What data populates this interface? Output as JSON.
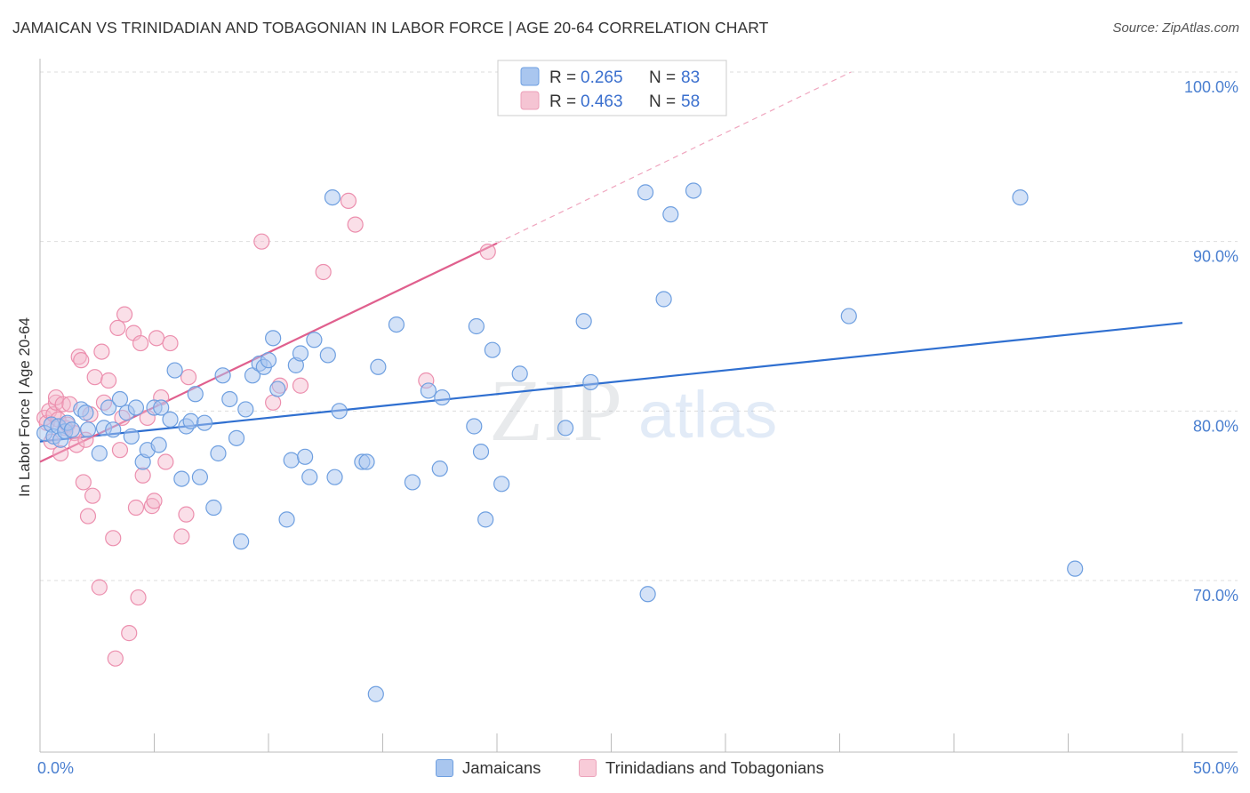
{
  "header": {
    "title": "JAMAICAN VS TRINIDADIAN AND TOBAGONIAN IN LABOR FORCE | AGE 20-64 CORRELATION CHART",
    "source": "Source: ZipAtlas.com"
  },
  "watermark": {
    "zip": "ZIP",
    "atlas": "atlas"
  },
  "legend": {
    "rows": [
      {
        "r_label": "R = ",
        "r_value": "0.265",
        "n_label": "N = ",
        "n_value": "83"
      },
      {
        "r_label": "R = ",
        "r_value": "0.463",
        "n_label": "N = ",
        "n_value": "58"
      }
    ]
  },
  "bottom_legend": {
    "items": [
      {
        "label": "Jamaicans"
      },
      {
        "label": "Trinidadians and Tobagonians"
      }
    ]
  },
  "colors": {
    "blue_fill": "#a9c6ef",
    "blue_stroke": "#6e9fe0",
    "blue_line": "#2f6fd0",
    "pink_fill": "#f5b8cb",
    "pink_stroke": "#ec8fae",
    "pink_line": "#e0608e",
    "axis_text": "#4a7fd0",
    "grid": "#dddddd"
  },
  "chart_data": {
    "type": "scatter",
    "title": "JAMAICAN VS TRINIDADIAN AND TOBAGONIAN IN LABOR FORCE | AGE 20-64 CORRELATION CHART",
    "xlabel": "",
    "ylabel": "In Labor Force | Age 20-64",
    "xlim": [
      0,
      50
    ],
    "ylim": [
      60,
      101.5
    ],
    "x_tick_labels": [
      "0.0%",
      "50.0%"
    ],
    "y_ticks": [
      70,
      80,
      90,
      100
    ],
    "y_tick_labels": [
      "70.0%",
      "80.0%",
      "90.0%",
      "100.0%"
    ],
    "grid": true,
    "legend_position": "top-center",
    "series": [
      {
        "name": "Jamaicans",
        "R": 0.265,
        "N": 83,
        "trend": {
          "x": [
            0,
            50
          ],
          "y": [
            78.2,
            85.2
          ],
          "dashed_extension": false
        },
        "points": [
          [
            0.2,
            78.7
          ],
          [
            0.5,
            79.2
          ],
          [
            0.6,
            78.5
          ],
          [
            0.8,
            79.1
          ],
          [
            0.9,
            78.3
          ],
          [
            1.1,
            78.8
          ],
          [
            1.2,
            79.3
          ],
          [
            1.4,
            78.9
          ],
          [
            1.8,
            80.1
          ],
          [
            2.0,
            79.9
          ],
          [
            2.1,
            78.9
          ],
          [
            2.6,
            77.5
          ],
          [
            2.8,
            79.0
          ],
          [
            3.0,
            80.2
          ],
          [
            3.2,
            78.9
          ],
          [
            3.5,
            80.7
          ],
          [
            3.8,
            79.9
          ],
          [
            4.0,
            78.5
          ],
          [
            4.2,
            80.2
          ],
          [
            4.5,
            77.0
          ],
          [
            4.7,
            77.7
          ],
          [
            5.0,
            80.2
          ],
          [
            5.2,
            78.0
          ],
          [
            5.3,
            80.2
          ],
          [
            5.7,
            79.5
          ],
          [
            5.9,
            82.4
          ],
          [
            6.2,
            76.0
          ],
          [
            6.4,
            79.1
          ],
          [
            6.6,
            79.4
          ],
          [
            6.8,
            81.0
          ],
          [
            7.0,
            76.1
          ],
          [
            7.2,
            79.3
          ],
          [
            7.6,
            74.3
          ],
          [
            7.8,
            77.5
          ],
          [
            8.0,
            82.1
          ],
          [
            8.3,
            80.7
          ],
          [
            8.6,
            78.4
          ],
          [
            8.8,
            72.3
          ],
          [
            9.0,
            80.1
          ],
          [
            9.3,
            82.1
          ],
          [
            9.6,
            82.8
          ],
          [
            9.8,
            82.6
          ],
          [
            10.0,
            83.0
          ],
          [
            10.2,
            84.3
          ],
          [
            10.4,
            81.3
          ],
          [
            10.8,
            73.6
          ],
          [
            11.0,
            77.1
          ],
          [
            11.2,
            82.7
          ],
          [
            11.4,
            83.4
          ],
          [
            11.6,
            77.3
          ],
          [
            11.8,
            76.1
          ],
          [
            12.0,
            84.2
          ],
          [
            12.6,
            83.3
          ],
          [
            12.8,
            92.6
          ],
          [
            12.9,
            76.1
          ],
          [
            13.1,
            80.0
          ],
          [
            14.1,
            77.0
          ],
          [
            14.3,
            77.0
          ],
          [
            14.7,
            63.3
          ],
          [
            14.8,
            82.6
          ],
          [
            15.6,
            85.1
          ],
          [
            16.3,
            75.8
          ],
          [
            17.0,
            81.2
          ],
          [
            17.5,
            76.6
          ],
          [
            17.6,
            80.8
          ],
          [
            19.0,
            79.1
          ],
          [
            19.1,
            85.0
          ],
          [
            19.3,
            77.6
          ],
          [
            19.5,
            73.6
          ],
          [
            19.8,
            83.6
          ],
          [
            20.2,
            75.7
          ],
          [
            21.0,
            82.2
          ],
          [
            23.0,
            79.0
          ],
          [
            23.8,
            85.3
          ],
          [
            24.1,
            81.7
          ],
          [
            26.5,
            92.9
          ],
          [
            26.6,
            69.2
          ],
          [
            27.3,
            86.6
          ],
          [
            27.6,
            91.6
          ],
          [
            28.6,
            93.0
          ],
          [
            35.4,
            85.6
          ],
          [
            42.9,
            92.6
          ],
          [
            45.3,
            70.7
          ]
        ]
      },
      {
        "name": "Trinidadians and Tobagonians",
        "R": 0.463,
        "N": 58,
        "trend": {
          "x": [
            0,
            20.0
          ],
          "y": [
            77.0,
            89.9
          ],
          "dashed_extension_to": [
            35.5,
            100.0
          ]
        },
        "points": [
          [
            0.2,
            79.6
          ],
          [
            0.3,
            79.3
          ],
          [
            0.4,
            80.0
          ],
          [
            0.5,
            78.2
          ],
          [
            0.6,
            79.8
          ],
          [
            0.7,
            80.5
          ],
          [
            0.7,
            80.8
          ],
          [
            0.8,
            79.5
          ],
          [
            0.9,
            77.5
          ],
          [
            1.0,
            80.4
          ],
          [
            1.1,
            79.0
          ],
          [
            1.2,
            79.2
          ],
          [
            1.3,
            80.4
          ],
          [
            1.5,
            78.7
          ],
          [
            1.6,
            78.0
          ],
          [
            1.7,
            83.2
          ],
          [
            1.8,
            83.0
          ],
          [
            1.9,
            75.8
          ],
          [
            2.0,
            78.3
          ],
          [
            2.1,
            73.8
          ],
          [
            2.2,
            79.8
          ],
          [
            2.3,
            75.0
          ],
          [
            2.4,
            82.0
          ],
          [
            2.6,
            69.6
          ],
          [
            2.7,
            83.5
          ],
          [
            2.8,
            80.5
          ],
          [
            3.0,
            81.8
          ],
          [
            3.2,
            72.5
          ],
          [
            3.3,
            65.4
          ],
          [
            3.4,
            84.9
          ],
          [
            3.5,
            77.7
          ],
          [
            3.6,
            79.6
          ],
          [
            3.7,
            85.7
          ],
          [
            3.9,
            66.9
          ],
          [
            4.1,
            84.6
          ],
          [
            4.2,
            74.3
          ],
          [
            4.3,
            69.0
          ],
          [
            4.4,
            84.0
          ],
          [
            4.5,
            76.2
          ],
          [
            4.7,
            79.6
          ],
          [
            4.9,
            74.4
          ],
          [
            5.0,
            74.7
          ],
          [
            5.1,
            84.3
          ],
          [
            5.3,
            80.8
          ],
          [
            5.5,
            77.0
          ],
          [
            5.7,
            84.0
          ],
          [
            6.2,
            72.6
          ],
          [
            6.4,
            73.9
          ],
          [
            6.5,
            82.0
          ],
          [
            9.7,
            90.0
          ],
          [
            10.2,
            80.5
          ],
          [
            10.5,
            81.5
          ],
          [
            11.4,
            81.5
          ],
          [
            12.4,
            88.2
          ],
          [
            13.5,
            92.4
          ],
          [
            13.8,
            91.0
          ],
          [
            16.9,
            81.8
          ],
          [
            19.6,
            89.4
          ]
        ]
      }
    ]
  }
}
